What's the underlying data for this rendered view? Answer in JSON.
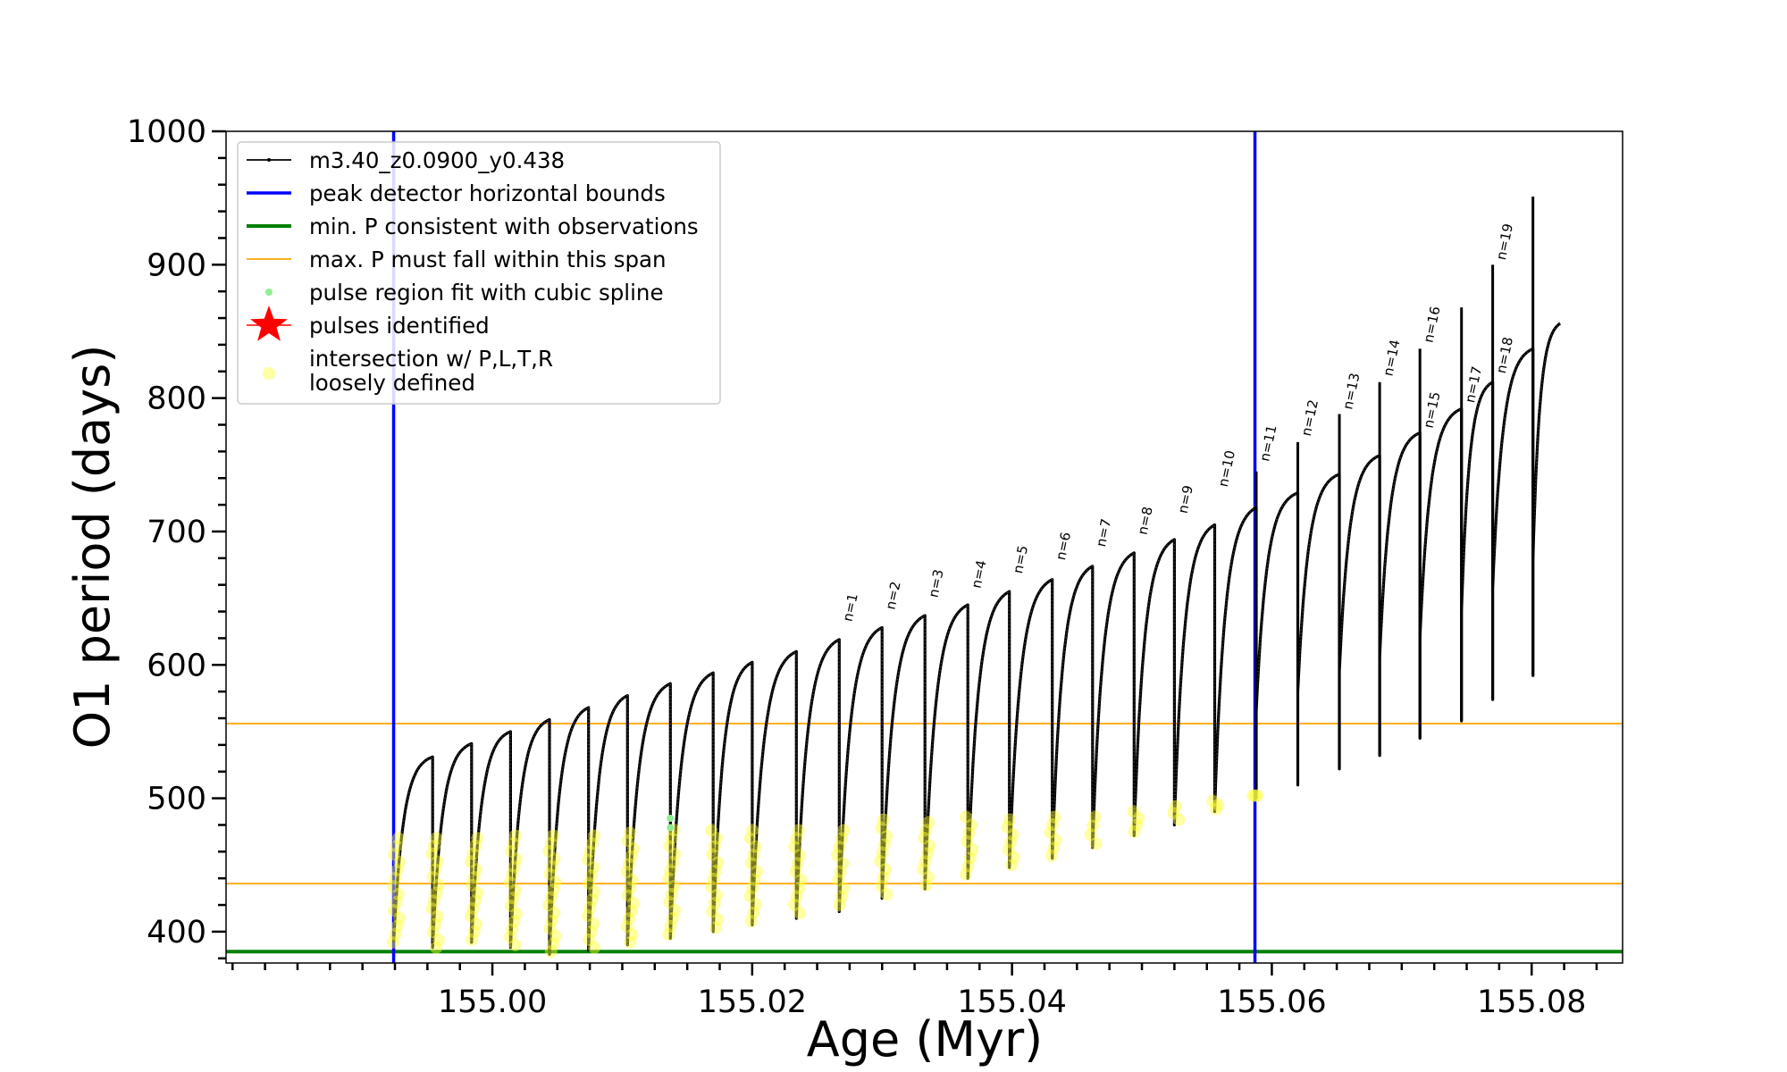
{
  "chart_data": {
    "type": "line",
    "xlabel": "Age (Myr)",
    "ylabel": "O1 period (days)",
    "xlim": [
      154.9795,
      155.087
    ],
    "ylim": [
      376.5,
      1000
    ],
    "xticks": [
      155.0,
      155.02,
      155.04,
      155.06,
      155.08
    ],
    "xtick_labels": [
      "155.00",
      "155.02",
      "155.04",
      "155.06",
      "155.08"
    ],
    "x_minor_step": 0.0025,
    "yticks": [
      400,
      500,
      600,
      700,
      800,
      900,
      1000
    ],
    "ytick_labels": [
      "400",
      "500",
      "600",
      "700",
      "800",
      "900",
      "1000"
    ],
    "y_minor_step": 20,
    "legend_position": "upper-left",
    "legend": [
      {
        "key": "model",
        "label": "m3.40_z0.0900_y0.438",
        "color": "#000000"
      },
      {
        "key": "bounds",
        "label": "peak detector horizontal bounds",
        "color": "#0000ff"
      },
      {
        "key": "minp",
        "label": "min. P consistent with observations",
        "color": "#008000"
      },
      {
        "key": "maxp",
        "label": "max. P must fall within this span",
        "color": "#ffa500"
      },
      {
        "key": "spline",
        "label": "pulse region fit with cubic spline",
        "color": "#90ee90"
      },
      {
        "key": "pulses",
        "label": "pulses identified",
        "color": "#ff0000"
      },
      {
        "key": "intersect",
        "label": "intersection w/ P,L,T,R",
        "label2": "loosely defined",
        "color": "#ffff66"
      }
    ],
    "vertical_bounds": [
      154.9924,
      155.0587
    ],
    "min_period_line": 385,
    "max_period_span": [
      436,
      556
    ],
    "series": [
      {
        "name": "m3.40_z0.0900_y0.438",
        "note": "pulse cycles: [start age, end age, period at start (minimum), period at end (peak), minimum reached after drop]",
        "cycles": [
          [
            154.9924,
            154.9954,
            392,
            531,
            388
          ],
          [
            154.9954,
            154.9984,
            388,
            541,
            392
          ],
          [
            154.9984,
            155.0014,
            392,
            550,
            388
          ],
          [
            155.0014,
            155.0044,
            388,
            559,
            383
          ],
          [
            155.0044,
            155.0074,
            383,
            568,
            386
          ],
          [
            155.0074,
            155.0104,
            386,
            577,
            390
          ],
          [
            155.0104,
            155.0137,
            390,
            586,
            395
          ],
          [
            155.0137,
            155.017,
            395,
            594,
            400
          ],
          [
            155.017,
            155.02,
            400,
            602,
            405
          ],
          [
            155.02,
            155.0234,
            405,
            610,
            410
          ],
          [
            155.0234,
            155.0267,
            410,
            619,
            415
          ],
          [
            155.0267,
            155.03,
            415,
            628,
            425
          ],
          [
            155.03,
            155.0333,
            425,
            637,
            432
          ],
          [
            155.0333,
            155.0366,
            432,
            645,
            440
          ],
          [
            155.0366,
            155.0398,
            440,
            655,
            448
          ],
          [
            155.0398,
            155.0431,
            448,
            664,
            455
          ],
          [
            155.0431,
            155.0462,
            455,
            674,
            463
          ],
          [
            155.0462,
            155.0494,
            463,
            684,
            472
          ],
          [
            155.0494,
            155.0525,
            472,
            694,
            480
          ],
          [
            155.0525,
            155.0556,
            480,
            705,
            490
          ],
          [
            155.0556,
            155.0588,
            490,
            718,
            500
          ],
          [
            155.0588,
            155.062,
            565,
            729,
            510
          ],
          [
            155.062,
            155.0652,
            580,
            743,
            522
          ],
          [
            155.0652,
            155.0683,
            595,
            757,
            532
          ],
          [
            155.0683,
            155.0714,
            605,
            774,
            545
          ],
          [
            155.0714,
            155.0746,
            620,
            792,
            558
          ],
          [
            155.0746,
            155.077,
            640,
            812,
            574
          ],
          [
            155.077,
            155.0801,
            657,
            837,
            592
          ],
          [
            155.0801,
            155.0822,
            678,
            856,
            856
          ]
        ],
        "spikes": [
          [
            155.0588,
            745
          ],
          [
            155.062,
            767
          ],
          [
            155.0652,
            788
          ],
          [
            155.0683,
            812
          ],
          [
            155.0714,
            837
          ],
          [
            155.0746,
            868
          ],
          [
            155.077,
            900
          ],
          [
            155.0801,
            951
          ]
        ]
      }
    ],
    "pulse_labels": [
      {
        "label": "n=1",
        "x": 155.0267,
        "y": 632
      },
      {
        "label": "n=2",
        "x": 155.03,
        "y": 641
      },
      {
        "label": "n=3",
        "x": 155.0333,
        "y": 650
      },
      {
        "label": "n=4",
        "x": 155.0366,
        "y": 657
      },
      {
        "label": "n=5",
        "x": 155.0398,
        "y": 668
      },
      {
        "label": "n=6",
        "x": 155.0431,
        "y": 678
      },
      {
        "label": "n=7",
        "x": 155.0462,
        "y": 688
      },
      {
        "label": "n=8",
        "x": 155.0494,
        "y": 697
      },
      {
        "label": "n=9",
        "x": 155.0525,
        "y": 713
      },
      {
        "label": "n=10",
        "x": 155.0556,
        "y": 733
      },
      {
        "label": "n=11",
        "x": 155.0588,
        "y": 752
      },
      {
        "label": "n=12",
        "x": 155.062,
        "y": 771
      },
      {
        "label": "n=13",
        "x": 155.0652,
        "y": 791
      },
      {
        "label": "n=14",
        "x": 155.0683,
        "y": 816
      },
      {
        "label": "n=15",
        "x": 155.0714,
        "y": 777
      },
      {
        "label": "n=16",
        "x": 155.0714,
        "y": 841
      },
      {
        "label": "n=17",
        "x": 155.0746,
        "y": 796
      },
      {
        "label": "n=18",
        "x": 155.077,
        "y": 818
      },
      {
        "label": "n=19",
        "x": 155.077,
        "y": 903
      }
    ],
    "intersection_points": [
      [
        154.9926,
        470,
        392
      ],
      [
        154.9956,
        470,
        388
      ],
      [
        154.9986,
        470,
        394
      ],
      [
        155.0016,
        472,
        390
      ],
      [
        155.0046,
        472,
        385
      ],
      [
        155.0076,
        472,
        388
      ],
      [
        155.0106,
        474,
        392
      ],
      [
        155.0138,
        476,
        398
      ],
      [
        155.0171,
        476,
        403
      ],
      [
        155.0201,
        476,
        408
      ],
      [
        155.0235,
        476,
        414
      ],
      [
        155.0268,
        476,
        420
      ],
      [
        155.0301,
        484,
        428
      ],
      [
        155.0334,
        482,
        435
      ],
      [
        155.0367,
        486,
        443
      ],
      [
        155.0399,
        484,
        450
      ],
      [
        155.0432,
        486,
        457
      ],
      [
        155.0463,
        486,
        466
      ],
      [
        155.0495,
        490,
        475
      ],
      [
        155.0526,
        494,
        484
      ],
      [
        155.0557,
        498,
        492
      ],
      [
        155.0588,
        502,
        502
      ]
    ],
    "spline_points": [
      [
        155.0137,
        485
      ],
      [
        155.0137,
        478
      ]
    ]
  }
}
